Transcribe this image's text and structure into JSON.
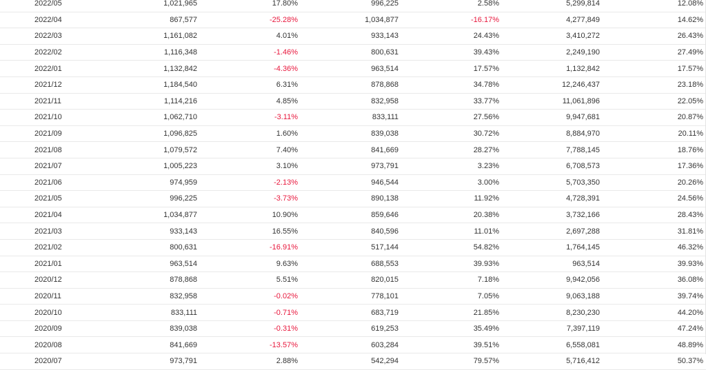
{
  "colors": {
    "negative": "#e8173c",
    "text": "#333333",
    "row_border": "#e9e9e9"
  },
  "rows": [
    {
      "month": "2022/05",
      "value": "1,021,965",
      "mom": "17.80%",
      "prev_year": "996,225",
      "yoy": "2.58%",
      "cumulative": "5,299,814",
      "cum_yoy": "12.08%"
    },
    {
      "month": "2022/04",
      "value": "867,577",
      "mom": "-25.28%",
      "prev_year": "1,034,877",
      "yoy": "-16.17%",
      "cumulative": "4,277,849",
      "cum_yoy": "14.62%"
    },
    {
      "month": "2022/03",
      "value": "1,161,082",
      "mom": "4.01%",
      "prev_year": "933,143",
      "yoy": "24.43%",
      "cumulative": "3,410,272",
      "cum_yoy": "26.43%"
    },
    {
      "month": "2022/02",
      "value": "1,116,348",
      "mom": "-1.46%",
      "prev_year": "800,631",
      "yoy": "39.43%",
      "cumulative": "2,249,190",
      "cum_yoy": "27.49%"
    },
    {
      "month": "2022/01",
      "value": "1,132,842",
      "mom": "-4.36%",
      "prev_year": "963,514",
      "yoy": "17.57%",
      "cumulative": "1,132,842",
      "cum_yoy": "17.57%"
    },
    {
      "month": "2021/12",
      "value": "1,184,540",
      "mom": "6.31%",
      "prev_year": "878,868",
      "yoy": "34.78%",
      "cumulative": "12,246,437",
      "cum_yoy": "23.18%"
    },
    {
      "month": "2021/11",
      "value": "1,114,216",
      "mom": "4.85%",
      "prev_year": "832,958",
      "yoy": "33.77%",
      "cumulative": "11,061,896",
      "cum_yoy": "22.05%"
    },
    {
      "month": "2021/10",
      "value": "1,062,710",
      "mom": "-3.11%",
      "prev_year": "833,111",
      "yoy": "27.56%",
      "cumulative": "9,947,681",
      "cum_yoy": "20.87%"
    },
    {
      "month": "2021/09",
      "value": "1,096,825",
      "mom": "1.60%",
      "prev_year": "839,038",
      "yoy": "30.72%",
      "cumulative": "8,884,970",
      "cum_yoy": "20.11%"
    },
    {
      "month": "2021/08",
      "value": "1,079,572",
      "mom": "7.40%",
      "prev_year": "841,669",
      "yoy": "28.27%",
      "cumulative": "7,788,145",
      "cum_yoy": "18.76%"
    },
    {
      "month": "2021/07",
      "value": "1,005,223",
      "mom": "3.10%",
      "prev_year": "973,791",
      "yoy": "3.23%",
      "cumulative": "6,708,573",
      "cum_yoy": "17.36%"
    },
    {
      "month": "2021/06",
      "value": "974,959",
      "mom": "-2.13%",
      "prev_year": "946,544",
      "yoy": "3.00%",
      "cumulative": "5,703,350",
      "cum_yoy": "20.26%"
    },
    {
      "month": "2021/05",
      "value": "996,225",
      "mom": "-3.73%",
      "prev_year": "890,138",
      "yoy": "11.92%",
      "cumulative": "4,728,391",
      "cum_yoy": "24.56%"
    },
    {
      "month": "2021/04",
      "value": "1,034,877",
      "mom": "10.90%",
      "prev_year": "859,646",
      "yoy": "20.38%",
      "cumulative": "3,732,166",
      "cum_yoy": "28.43%"
    },
    {
      "month": "2021/03",
      "value": "933,143",
      "mom": "16.55%",
      "prev_year": "840,596",
      "yoy": "11.01%",
      "cumulative": "2,697,288",
      "cum_yoy": "31.81%"
    },
    {
      "month": "2021/02",
      "value": "800,631",
      "mom": "-16.91%",
      "prev_year": "517,144",
      "yoy": "54.82%",
      "cumulative": "1,764,145",
      "cum_yoy": "46.32%"
    },
    {
      "month": "2021/01",
      "value": "963,514",
      "mom": "9.63%",
      "prev_year": "688,553",
      "yoy": "39.93%",
      "cumulative": "963,514",
      "cum_yoy": "39.93%"
    },
    {
      "month": "2020/12",
      "value": "878,868",
      "mom": "5.51%",
      "prev_year": "820,015",
      "yoy": "7.18%",
      "cumulative": "9,942,056",
      "cum_yoy": "36.08%"
    },
    {
      "month": "2020/11",
      "value": "832,958",
      "mom": "-0.02%",
      "prev_year": "778,101",
      "yoy": "7.05%",
      "cumulative": "9,063,188",
      "cum_yoy": "39.74%"
    },
    {
      "month": "2020/10",
      "value": "833,111",
      "mom": "-0.71%",
      "prev_year": "683,719",
      "yoy": "21.85%",
      "cumulative": "8,230,230",
      "cum_yoy": "44.20%"
    },
    {
      "month": "2020/09",
      "value": "839,038",
      "mom": "-0.31%",
      "prev_year": "619,253",
      "yoy": "35.49%",
      "cumulative": "7,397,119",
      "cum_yoy": "47.24%"
    },
    {
      "month": "2020/08",
      "value": "841,669",
      "mom": "-13.57%",
      "prev_year": "603,284",
      "yoy": "39.51%",
      "cumulative": "6,558,081",
      "cum_yoy": "48.89%"
    },
    {
      "month": "2020/07",
      "value": "973,791",
      "mom": "2.88%",
      "prev_year": "542,294",
      "yoy": "79.57%",
      "cumulative": "5,716,412",
      "cum_yoy": "50.37%"
    }
  ]
}
